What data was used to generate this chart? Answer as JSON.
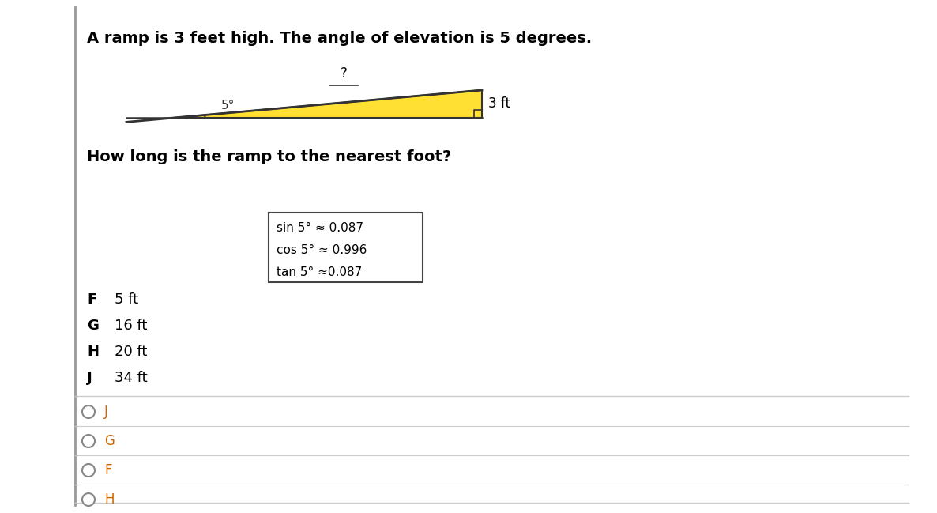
{
  "title": "A ramp is 3 feet high. The angle of elevation is 5 degrees.",
  "question": "How long is the ramp to the nearest foot?",
  "trig_values": [
    "sin 5° ≈ 0.087",
    "cos 5° ≈ 0.996",
    "tan 5° ≈0.087"
  ],
  "choices": [
    [
      "F",
      "5 ft"
    ],
    [
      "G",
      "16 ft"
    ],
    [
      "H",
      "20 ft"
    ],
    [
      "J",
      "34 ft"
    ]
  ],
  "radio_options": [
    "J",
    "G",
    "F",
    "H"
  ],
  "ramp_color": "#FFE033",
  "ramp_outline": "#333333",
  "bg_color": "#ffffff",
  "title_color": "#000000",
  "radio_letter_color_J": "#cc6600",
  "radio_letter_color_G": "#cc6600",
  "radio_letter_color_F": "#cc6600",
  "radio_letter_color_H": "#cc6600",
  "separator_color": "#cccccc",
  "left_border_color": "#999999"
}
